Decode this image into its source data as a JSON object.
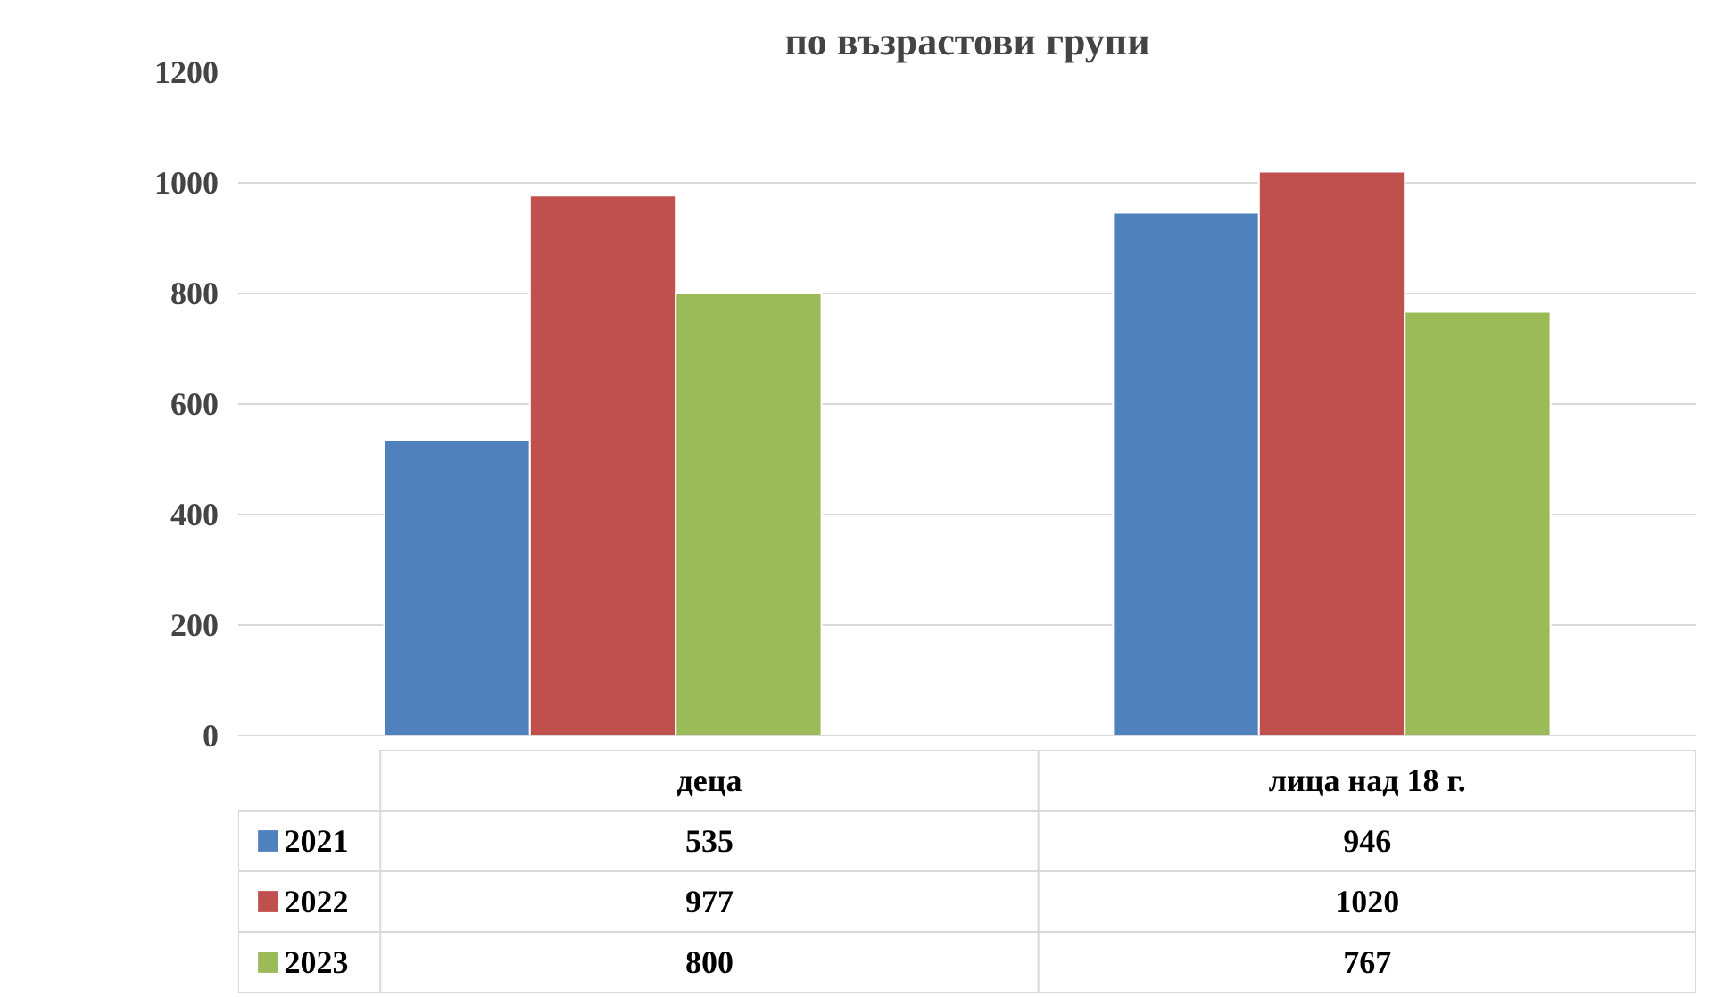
{
  "chart_data": {
    "type": "bar",
    "title": "по възрастови групи",
    "categories": [
      "деца",
      "лица над 18 г."
    ],
    "series": [
      {
        "name": "2021",
        "color": "#4f81bd",
        "values": [
          535,
          946
        ]
      },
      {
        "name": "2022",
        "color": "#c0504d",
        "values": [
          977,
          1020
        ]
      },
      {
        "name": "2023",
        "color": "#9bbb59",
        "values": [
          800,
          767
        ]
      }
    ],
    "ylim": [
      0,
      1200
    ],
    "yticks": [
      0,
      200,
      400,
      600,
      800,
      1000,
      1200
    ],
    "grid": "y",
    "legend": "bottom",
    "data_labels": true
  }
}
